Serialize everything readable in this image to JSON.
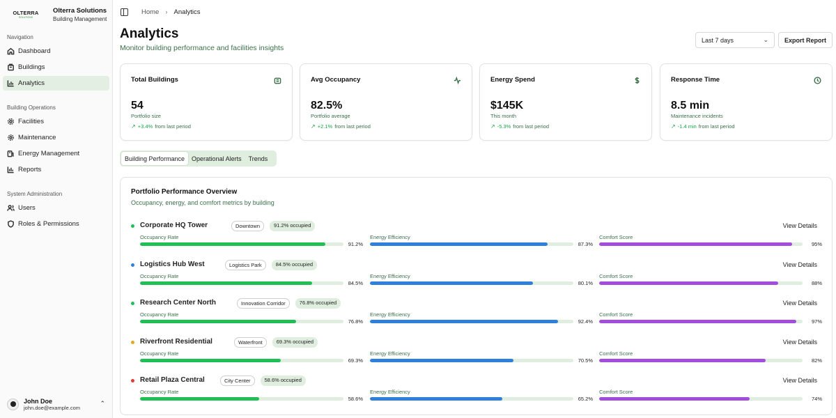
{
  "brand": {
    "logo_word": "OLTERRA",
    "logo_sub": "SOLUTIONS",
    "name": "Olterra Solutions",
    "sub": "Building Management"
  },
  "sidebar": {
    "groups": [
      {
        "label": "Navigation",
        "items": [
          {
            "label": "Dashboard",
            "icon": "home-icon"
          },
          {
            "label": "Buildings",
            "icon": "building-icon"
          },
          {
            "label": "Analytics",
            "icon": "bar-chart-icon",
            "active": true
          }
        ]
      },
      {
        "label": "Building Operations",
        "items": [
          {
            "label": "Facilities",
            "icon": "gear-icon"
          },
          {
            "label": "Maintenance",
            "icon": "wrench-icon"
          },
          {
            "label": "Energy Management",
            "icon": "energy-icon"
          },
          {
            "label": "Reports",
            "icon": "report-icon"
          }
        ]
      },
      {
        "label": "System Administration",
        "items": [
          {
            "label": "Users",
            "icon": "users-icon"
          },
          {
            "label": "Roles & Permissions",
            "icon": "shield-icon"
          }
        ]
      }
    ],
    "user": {
      "name": "John Doe",
      "email": "john.doe@example.com"
    }
  },
  "breadcrumb": {
    "home": "Home",
    "current": "Analytics"
  },
  "header": {
    "title": "Analytics",
    "subtitle": "Monitor building performance and facilities insights",
    "range_select": "Last 7 days",
    "export_label": "Export Report"
  },
  "kpis": [
    {
      "title": "Total Buildings",
      "icon": "building-icon",
      "value": "54",
      "sub": "Portfolio size",
      "delta": "+3.4%",
      "delta_suffix": "from last period"
    },
    {
      "title": "Avg Occupancy",
      "icon": "activity-icon",
      "value": "82.5%",
      "sub": "Portfolio average",
      "delta": "+2.1%",
      "delta_suffix": "from last period"
    },
    {
      "title": "Energy Spend",
      "icon": "dollar-icon",
      "value": "$145K",
      "sub": "This month",
      "delta": "-5.3%",
      "delta_suffix": "from last period"
    },
    {
      "title": "Response Time",
      "icon": "clock-icon",
      "value": "8.5 min",
      "sub": "Maintenance incidents",
      "delta": "-1.4 min",
      "delta_suffix": "from last period"
    }
  ],
  "tabs": [
    {
      "label": "Building Performance",
      "active": true
    },
    {
      "label": "Operational Alerts"
    },
    {
      "label": "Trends"
    }
  ],
  "performance": {
    "title": "Portfolio Performance Overview",
    "subtitle": "Occupancy, energy, and comfort metrics by building",
    "metric_labels": {
      "occupancy": "Occupancy Rate",
      "energy": "Energy Efficiency",
      "comfort": "Comfort Score"
    },
    "link_label": "View Details",
    "colors": {
      "occupancy": "#1fbf56",
      "energy": "#2f7fdc",
      "comfort": "#a34ddf"
    },
    "buildings": [
      {
        "name": "Corporate HQ Tower",
        "location": "Downtown",
        "occupied": "91.2% occupied",
        "dot": "#1fbf56",
        "occupancy": 91.2,
        "occupancy_label": "91.2%",
        "energy": 87.3,
        "energy_label": "87.3%",
        "comfort": 95,
        "comfort_label": "95%"
      },
      {
        "name": "Logistics Hub West",
        "location": "Logistics Park",
        "occupied": "84.5% occupied",
        "dot": "#2f7fdc",
        "occupancy": 84.5,
        "occupancy_label": "84.5%",
        "energy": 80.1,
        "energy_label": "80.1%",
        "comfort": 88,
        "comfort_label": "88%"
      },
      {
        "name": "Research Center North",
        "location": "Innovation Corridor",
        "occupied": "76.8% occupied",
        "dot": "#1fbf56",
        "occupancy": 76.8,
        "occupancy_label": "76.8%",
        "energy": 92.4,
        "energy_label": "92.4%",
        "comfort": 97,
        "comfort_label": "97%"
      },
      {
        "name": "Riverfront Residential",
        "location": "Waterfront",
        "occupied": "69.3% occupied",
        "dot": "#e5a823",
        "occupancy": 69.3,
        "occupancy_label": "69.3%",
        "energy": 70.5,
        "energy_label": "70.5%",
        "comfort": 82,
        "comfort_label": "82%"
      },
      {
        "name": "Retail Plaza Central",
        "location": "City Center",
        "occupied": "58.6% occupied",
        "dot": "#e03a3a",
        "occupancy": 58.6,
        "occupancy_label": "58.6%",
        "energy": 65.2,
        "energy_label": "65.2%",
        "comfort": 74,
        "comfort_label": "74%"
      }
    ]
  }
}
